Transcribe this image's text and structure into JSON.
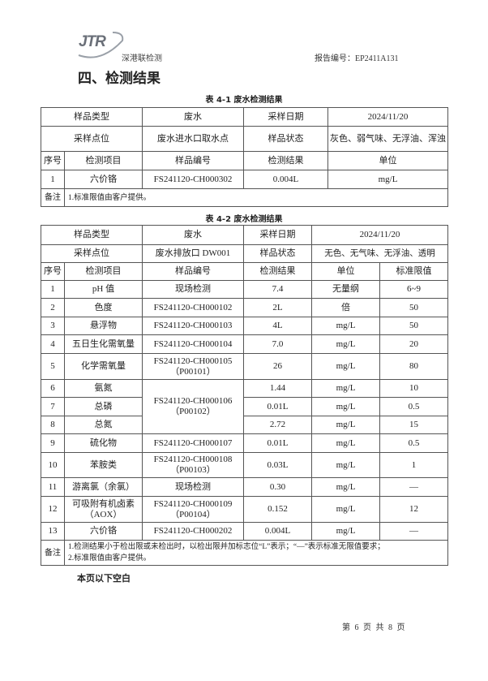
{
  "header": {
    "logo": "JTR",
    "company": "深港联检测",
    "report_no": "报告编号：EP2411A131"
  },
  "section_title": "四、检测结果",
  "table1": {
    "caption": "表 4-1  废水检测结果",
    "sample_type_label": "样品类型",
    "sample_type": "废水",
    "sampling_date_label": "采样日期",
    "sampling_date": "2024/11/20",
    "location_label": "采样点位",
    "location": "废水进水口取水点",
    "state_label": "样品状态",
    "state": "灰色、弱气味、无浮油、浑浊",
    "headers": [
      "序号",
      "检测项目",
      "样品编号",
      "检测结果",
      "单位"
    ],
    "rows": [
      {
        "no": "1",
        "item": "六价铬",
        "sample": "FS241120-CH000302",
        "result": "0.004L",
        "unit": "mg/L"
      }
    ],
    "note_label": "备注",
    "note": "1.标准限值由客户提供。"
  },
  "table2": {
    "caption": "表 4-2  废水检测结果",
    "sample_type_label": "样品类型",
    "sample_type": "废水",
    "sampling_date_label": "采样日期",
    "sampling_date": "2024/11/20",
    "location_label": "采样点位",
    "location": "废水排放口 DW001",
    "state_label": "样品状态",
    "state": "无色、无气味、无浮油、透明",
    "headers": [
      "序号",
      "检测项目",
      "样品编号",
      "检测结果",
      "单位",
      "标准限值"
    ],
    "rows": [
      {
        "no": "1",
        "item": "pH 值",
        "sample": "现场检测",
        "result": "7.4",
        "unit": "无量纲",
        "limit": "6~9"
      },
      {
        "no": "2",
        "item": "色度",
        "sample": "FS241120-CH000102",
        "result": "2L",
        "unit": "倍",
        "limit": "50"
      },
      {
        "no": "3",
        "item": "悬浮物",
        "sample": "FS241120-CH000103",
        "result": "4L",
        "unit": "mg/L",
        "limit": "50"
      },
      {
        "no": "4",
        "item": "五日生化需氧量",
        "sample": "FS241120-CH000104",
        "result": "7.0",
        "unit": "mg/L",
        "limit": "20"
      },
      {
        "no": "5",
        "item": "化学需氧量",
        "sample": "FS241120-CH000105",
        "sample2": "（P00101）",
        "result": "26",
        "unit": "mg/L",
        "limit": "80"
      },
      {
        "no": "6",
        "item": "氨氮",
        "sample": "FS241120-CH000106",
        "sample2": "（P00102）",
        "result": "1.44",
        "unit": "mg/L",
        "limit": "10"
      },
      {
        "no": "7",
        "item": "总磷",
        "result": "0.01L",
        "unit": "mg/L",
        "limit": "0.5"
      },
      {
        "no": "8",
        "item": "总氮",
        "result": "2.72",
        "unit": "mg/L",
        "limit": "15"
      },
      {
        "no": "9",
        "item": "硫化物",
        "sample": "FS241120-CH000107",
        "result": "0.01L",
        "unit": "mg/L",
        "limit": "0.5"
      },
      {
        "no": "10",
        "item": "苯胺类",
        "sample": "FS241120-CH000108",
        "sample2": "（P00103）",
        "result": "0.03L",
        "unit": "mg/L",
        "limit": "1"
      },
      {
        "no": "11",
        "item": "游离氯（余氯）",
        "sample": "现场检测",
        "result": "0.30",
        "unit": "mg/L",
        "limit": "—"
      },
      {
        "no": "12",
        "item": "可吸附有机卤素",
        "item2": "（AOX）",
        "sample": "FS241120-CH000109",
        "sample2": "（P00104）",
        "result": "0.152",
        "unit": "mg/L",
        "limit": "12"
      },
      {
        "no": "13",
        "item": "六价铬",
        "sample": "FS241120-CH000202",
        "result": "0.004L",
        "unit": "mg/L",
        "limit": "—"
      }
    ],
    "note_label": "备注",
    "notes": [
      "1.检测结果小于检出限或未检出时，以检出限并加标志位“L”表示；“—”表示标准无限值要求；",
      "2.标准限值由客户提供。"
    ]
  },
  "blank_note": "本页以下空白",
  "footer": "第 6 页  共 8 页"
}
